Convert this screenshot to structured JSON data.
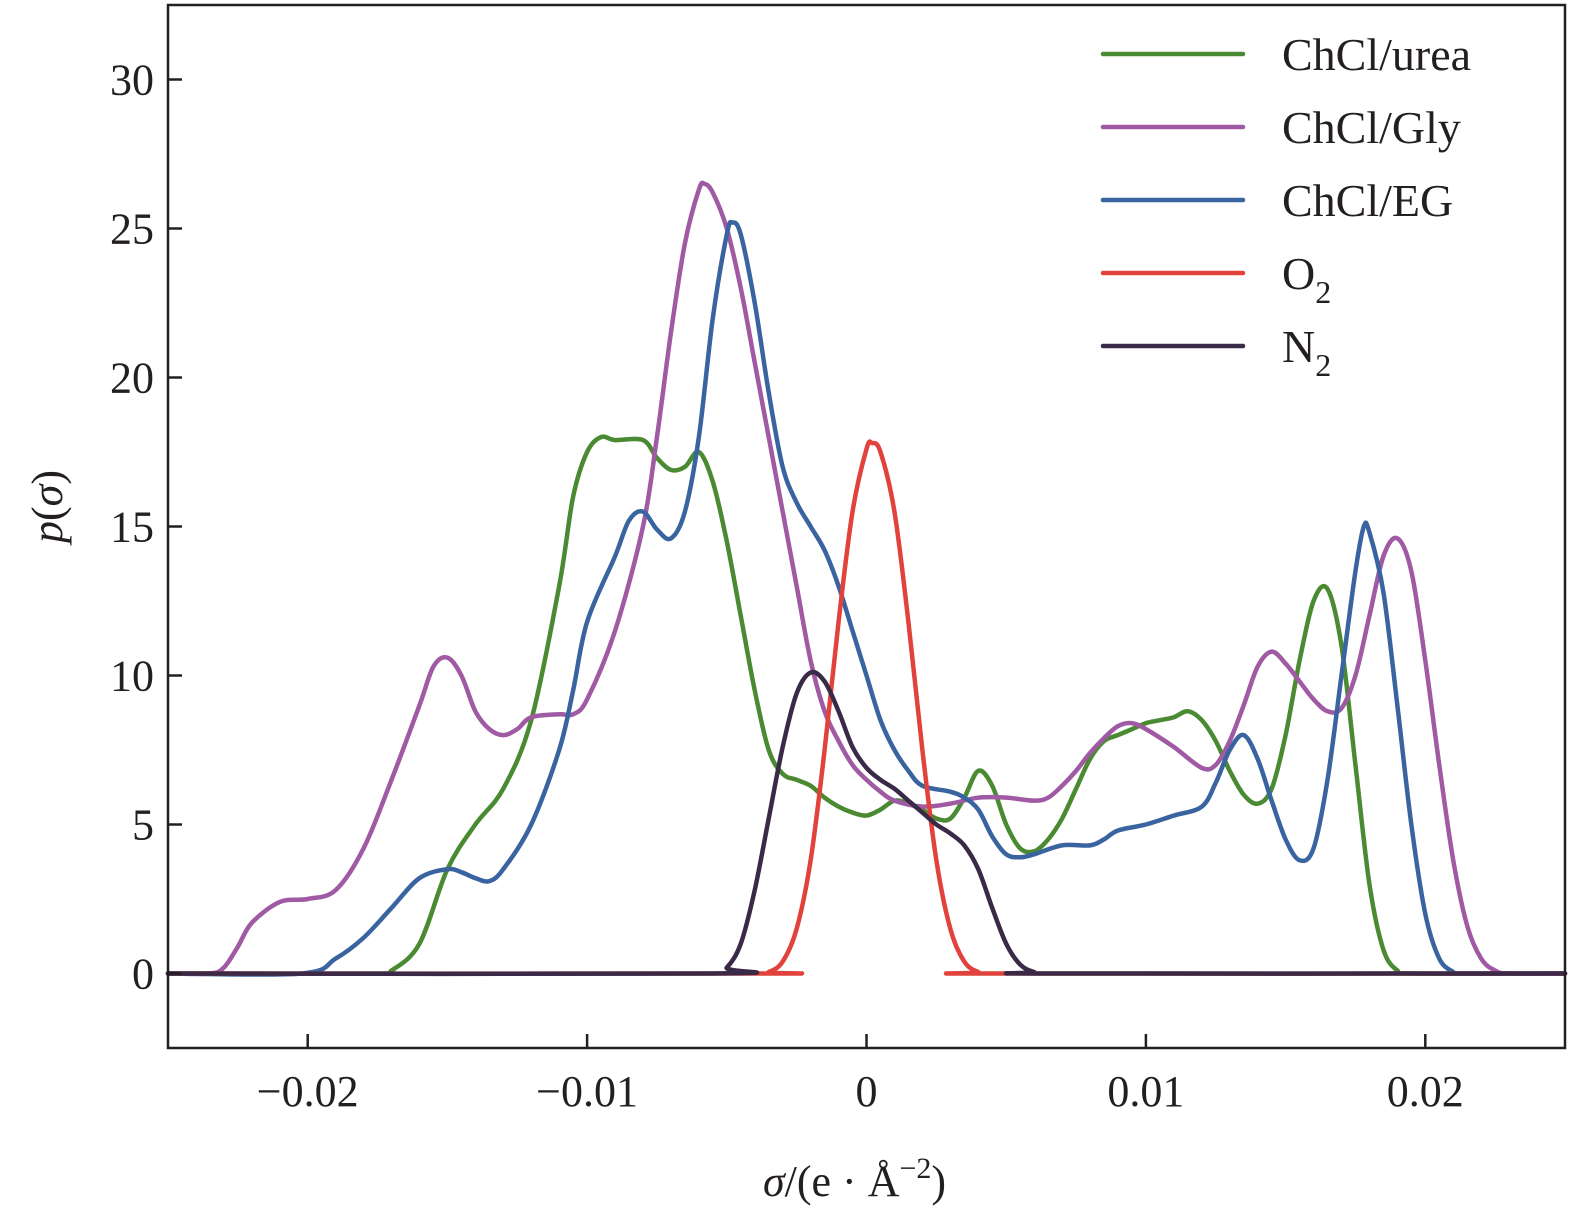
{
  "chart_data": {
    "type": "line",
    "title": "",
    "xlabel": {
      "symbol": "σ",
      "prefix": "/(e · Å",
      "sup": "−2",
      "suffix": ")"
    },
    "ylabel": {
      "func": "p",
      "arg": "σ"
    },
    "xlim": [
      -0.025,
      0.025
    ],
    "ylim": [
      -2.5,
      32.5
    ],
    "xticks": [
      -0.02,
      -0.01,
      0,
      0.01,
      0.02
    ],
    "xtick_labels": [
      "−0.02",
      "−0.01",
      "0",
      "0.01",
      "0.02"
    ],
    "yticks": [
      0,
      5,
      10,
      15,
      20,
      25,
      30
    ],
    "ytick_labels": [
      "0",
      "5",
      "10",
      "15",
      "20",
      "25",
      "30"
    ],
    "legend_position": "top-right",
    "series": [
      {
        "name": "ChCl/urea",
        "label_main": "ChCl/urea",
        "label_sub": "",
        "color": "#4a8a32",
        "points": [
          [
            -0.025,
            0
          ],
          [
            -0.0175,
            0
          ],
          [
            -0.017,
            0.1
          ],
          [
            -0.016,
            1.0
          ],
          [
            -0.015,
            3.5
          ],
          [
            -0.014,
            5.0
          ],
          [
            -0.013,
            6.2
          ],
          [
            -0.012,
            8.5
          ],
          [
            -0.011,
            13.0
          ],
          [
            -0.0105,
            16.0
          ],
          [
            -0.01,
            17.5
          ],
          [
            -0.0095,
            18.0
          ],
          [
            -0.009,
            17.9
          ],
          [
            -0.008,
            17.9
          ],
          [
            -0.0075,
            17.3
          ],
          [
            -0.007,
            16.9
          ],
          [
            -0.0065,
            17.0
          ],
          [
            -0.006,
            17.5
          ],
          [
            -0.0055,
            16.5
          ],
          [
            -0.005,
            14.5
          ],
          [
            -0.0045,
            12.0
          ],
          [
            -0.004,
            9.5
          ],
          [
            -0.0035,
            7.5
          ],
          [
            -0.003,
            6.7
          ],
          [
            -0.0025,
            6.5
          ],
          [
            -0.002,
            6.3
          ],
          [
            -0.0015,
            5.9
          ],
          [
            -0.001,
            5.6
          ],
          [
            -0.0005,
            5.4
          ],
          [
            0,
            5.3
          ],
          [
            0.0005,
            5.5
          ],
          [
            0.001,
            5.8
          ],
          [
            0.0015,
            5.7
          ],
          [
            0.002,
            5.5
          ],
          [
            0.0025,
            5.2
          ],
          [
            0.003,
            5.2
          ],
          [
            0.0035,
            5.9
          ],
          [
            0.004,
            6.8
          ],
          [
            0.0045,
            6.3
          ],
          [
            0.005,
            5.0
          ],
          [
            0.0055,
            4.2
          ],
          [
            0.006,
            4.1
          ],
          [
            0.0065,
            4.5
          ],
          [
            0.007,
            5.2
          ],
          [
            0.0075,
            6.2
          ],
          [
            0.008,
            7.2
          ],
          [
            0.0085,
            7.8
          ],
          [
            0.009,
            8.0
          ],
          [
            0.0095,
            8.2
          ],
          [
            0.01,
            8.4
          ],
          [
            0.0105,
            8.5
          ],
          [
            0.011,
            8.6
          ],
          [
            0.0115,
            8.8
          ],
          [
            0.012,
            8.5
          ],
          [
            0.0125,
            7.8
          ],
          [
            0.013,
            6.8
          ],
          [
            0.0135,
            6.0
          ],
          [
            0.014,
            5.7
          ],
          [
            0.0145,
            6.2
          ],
          [
            0.015,
            8.0
          ],
          [
            0.0155,
            10.5
          ],
          [
            0.016,
            12.5
          ],
          [
            0.0165,
            12.9
          ],
          [
            0.017,
            11.0
          ],
          [
            0.0175,
            7.0
          ],
          [
            0.018,
            3.0
          ],
          [
            0.0185,
            0.8
          ],
          [
            0.019,
            0.1
          ],
          [
            0.0195,
            0
          ],
          [
            0.025,
            0
          ]
        ]
      },
      {
        "name": "ChCl/Gly",
        "label_main": "ChCl/Gly",
        "label_sub": "",
        "color": "#a05aa3",
        "points": [
          [
            -0.025,
            0
          ],
          [
            -0.0235,
            0
          ],
          [
            -0.023,
            0.2
          ],
          [
            -0.0225,
            0.9
          ],
          [
            -0.022,
            1.7
          ],
          [
            -0.021,
            2.4
          ],
          [
            -0.02,
            2.5
          ],
          [
            -0.019,
            2.8
          ],
          [
            -0.018,
            4.2
          ],
          [
            -0.017,
            6.5
          ],
          [
            -0.016,
            9.0
          ],
          [
            -0.0155,
            10.3
          ],
          [
            -0.015,
            10.6
          ],
          [
            -0.0145,
            10.0
          ],
          [
            -0.014,
            8.8
          ],
          [
            -0.0135,
            8.2
          ],
          [
            -0.013,
            8.0
          ],
          [
            -0.0125,
            8.2
          ],
          [
            -0.012,
            8.6
          ],
          [
            -0.011,
            8.7
          ],
          [
            -0.0105,
            8.7
          ],
          [
            -0.01,
            9.2
          ],
          [
            -0.009,
            11.5
          ],
          [
            -0.008,
            15.0
          ],
          [
            -0.0075,
            18.0
          ],
          [
            -0.007,
            21.5
          ],
          [
            -0.0065,
            24.5
          ],
          [
            -0.006,
            26.3
          ],
          [
            -0.0058,
            26.5
          ],
          [
            -0.0055,
            26.2
          ],
          [
            -0.005,
            25.0
          ],
          [
            -0.0045,
            23.0
          ],
          [
            -0.004,
            20.5
          ],
          [
            -0.0035,
            18.0
          ],
          [
            -0.003,
            15.5
          ],
          [
            -0.0025,
            13.0
          ],
          [
            -0.002,
            10.5
          ],
          [
            -0.0015,
            8.8
          ],
          [
            -0.001,
            7.8
          ],
          [
            -0.0005,
            7.0
          ],
          [
            0,
            6.5
          ],
          [
            0.0005,
            6.1
          ],
          [
            0.001,
            5.8
          ],
          [
            0.002,
            5.6
          ],
          [
            0.003,
            5.7
          ],
          [
            0.004,
            5.9
          ],
          [
            0.005,
            5.9
          ],
          [
            0.006,
            5.8
          ],
          [
            0.0065,
            5.9
          ],
          [
            0.007,
            6.3
          ],
          [
            0.0075,
            6.8
          ],
          [
            0.008,
            7.4
          ],
          [
            0.0085,
            7.9
          ],
          [
            0.009,
            8.3
          ],
          [
            0.0095,
            8.4
          ],
          [
            0.01,
            8.2
          ],
          [
            0.011,
            7.6
          ],
          [
            0.012,
            6.9
          ],
          [
            0.0125,
            7.0
          ],
          [
            0.013,
            7.8
          ],
          [
            0.0135,
            9.0
          ],
          [
            0.014,
            10.3
          ],
          [
            0.0145,
            10.8
          ],
          [
            0.015,
            10.4
          ],
          [
            0.0155,
            9.8
          ],
          [
            0.016,
            9.2
          ],
          [
            0.0165,
            8.8
          ],
          [
            0.017,
            8.9
          ],
          [
            0.0175,
            10.0
          ],
          [
            0.018,
            12.0
          ],
          [
            0.0185,
            14.0
          ],
          [
            0.019,
            14.6
          ],
          [
            0.0195,
            13.5
          ],
          [
            0.02,
            10.5
          ],
          [
            0.0205,
            7.0
          ],
          [
            0.021,
            3.8
          ],
          [
            0.0215,
            1.6
          ],
          [
            0.022,
            0.5
          ],
          [
            0.0225,
            0.1
          ],
          [
            0.023,
            0
          ],
          [
            0.025,
            0
          ]
        ]
      },
      {
        "name": "ChCl/EG",
        "label_main": "ChCl/EG",
        "label_sub": "",
        "color": "#3a64a0",
        "points": [
          [
            -0.025,
            0
          ],
          [
            -0.0202,
            0
          ],
          [
            -0.019,
            0.5
          ],
          [
            -0.018,
            1.2
          ],
          [
            -0.017,
            2.2
          ],
          [
            -0.016,
            3.2
          ],
          [
            -0.015,
            3.5
          ],
          [
            -0.0145,
            3.4
          ],
          [
            -0.014,
            3.2
          ],
          [
            -0.0135,
            3.1
          ],
          [
            -0.013,
            3.5
          ],
          [
            -0.012,
            5.0
          ],
          [
            -0.011,
            7.5
          ],
          [
            -0.0105,
            9.5
          ],
          [
            -0.01,
            11.8
          ],
          [
            -0.009,
            14.0
          ],
          [
            -0.0085,
            15.2
          ],
          [
            -0.008,
            15.5
          ],
          [
            -0.0075,
            14.9
          ],
          [
            -0.007,
            14.6
          ],
          [
            -0.0065,
            15.5
          ],
          [
            -0.006,
            18.0
          ],
          [
            -0.0055,
            22.0
          ],
          [
            -0.005,
            24.8
          ],
          [
            -0.0048,
            25.2
          ],
          [
            -0.0045,
            24.8
          ],
          [
            -0.004,
            22.5
          ],
          [
            -0.0035,
            19.5
          ],
          [
            -0.003,
            17.0
          ],
          [
            -0.0025,
            15.8
          ],
          [
            -0.002,
            15.0
          ],
          [
            -0.0015,
            14.2
          ],
          [
            -0.001,
            13.0
          ],
          [
            -0.0005,
            11.5
          ],
          [
            0,
            10.0
          ],
          [
            0.0005,
            8.5
          ],
          [
            0.001,
            7.5
          ],
          [
            0.0015,
            6.8
          ],
          [
            0.002,
            6.3
          ],
          [
            0.003,
            6.1
          ],
          [
            0.0035,
            5.9
          ],
          [
            0.004,
            5.5
          ],
          [
            0.0045,
            4.6
          ],
          [
            0.005,
            4.0
          ],
          [
            0.0055,
            3.9
          ],
          [
            0.006,
            4.0
          ],
          [
            0.007,
            4.3
          ],
          [
            0.008,
            4.3
          ],
          [
            0.0085,
            4.5
          ],
          [
            0.009,
            4.8
          ],
          [
            0.01,
            5.0
          ],
          [
            0.011,
            5.3
          ],
          [
            0.012,
            5.6
          ],
          [
            0.0125,
            6.4
          ],
          [
            0.013,
            7.5
          ],
          [
            0.0135,
            8.0
          ],
          [
            0.014,
            7.2
          ],
          [
            0.0145,
            5.8
          ],
          [
            0.015,
            4.5
          ],
          [
            0.0155,
            3.8
          ],
          [
            0.016,
            4.2
          ],
          [
            0.0165,
            6.5
          ],
          [
            0.017,
            10.0
          ],
          [
            0.0175,
            13.5
          ],
          [
            0.0178,
            15.0
          ],
          [
            0.018,
            14.8
          ],
          [
            0.0185,
            12.8
          ],
          [
            0.019,
            9.0
          ],
          [
            0.0195,
            5.0
          ],
          [
            0.02,
            2.0
          ],
          [
            0.0205,
            0.5
          ],
          [
            0.021,
            0.05
          ],
          [
            0.0212,
            0
          ],
          [
            0.025,
            0
          ]
        ]
      },
      {
        "name": "O2",
        "label_main": "O",
        "label_sub": "2",
        "color": "#e2423c",
        "points": [
          [
            -0.025,
            0
          ],
          [
            -0.004,
            0
          ],
          [
            -0.0035,
            0.05
          ],
          [
            -0.003,
            0.4
          ],
          [
            -0.0025,
            1.5
          ],
          [
            -0.002,
            3.8
          ],
          [
            -0.0015,
            7.5
          ],
          [
            -0.001,
            11.8
          ],
          [
            -0.0005,
            15.5
          ],
          [
            0,
            17.6
          ],
          [
            0.0002,
            17.8
          ],
          [
            0.0005,
            17.5
          ],
          [
            0.001,
            15.5
          ],
          [
            0.0015,
            11.8
          ],
          [
            0.002,
            7.5
          ],
          [
            0.0025,
            3.8
          ],
          [
            0.003,
            1.5
          ],
          [
            0.0035,
            0.4
          ],
          [
            0.004,
            0.05
          ],
          [
            0.0045,
            0
          ],
          [
            0.025,
            0
          ]
        ]
      },
      {
        "name": "N2",
        "label_main": "N",
        "label_sub": "2",
        "color": "#3a2a48",
        "points": [
          [
            -0.025,
            0
          ],
          [
            -0.0055,
            0
          ],
          [
            -0.005,
            0.2
          ],
          [
            -0.0045,
            1.0
          ],
          [
            -0.004,
            2.8
          ],
          [
            -0.0035,
            5.2
          ],
          [
            -0.003,
            7.6
          ],
          [
            -0.0025,
            9.4
          ],
          [
            -0.002,
            10.1
          ],
          [
            -0.0015,
            9.8
          ],
          [
            -0.001,
            8.8
          ],
          [
            -0.0005,
            7.6
          ],
          [
            0,
            6.9
          ],
          [
            0.0005,
            6.5
          ],
          [
            0.001,
            6.2
          ],
          [
            0.0015,
            5.8
          ],
          [
            0.002,
            5.4
          ],
          [
            0.0025,
            5.0
          ],
          [
            0.003,
            4.7
          ],
          [
            0.0035,
            4.3
          ],
          [
            0.004,
            3.5
          ],
          [
            0.0045,
            2.2
          ],
          [
            0.005,
            1.0
          ],
          [
            0.0055,
            0.3
          ],
          [
            0.006,
            0.05
          ],
          [
            0.0065,
            0
          ],
          [
            0.025,
            0
          ]
        ]
      }
    ]
  }
}
